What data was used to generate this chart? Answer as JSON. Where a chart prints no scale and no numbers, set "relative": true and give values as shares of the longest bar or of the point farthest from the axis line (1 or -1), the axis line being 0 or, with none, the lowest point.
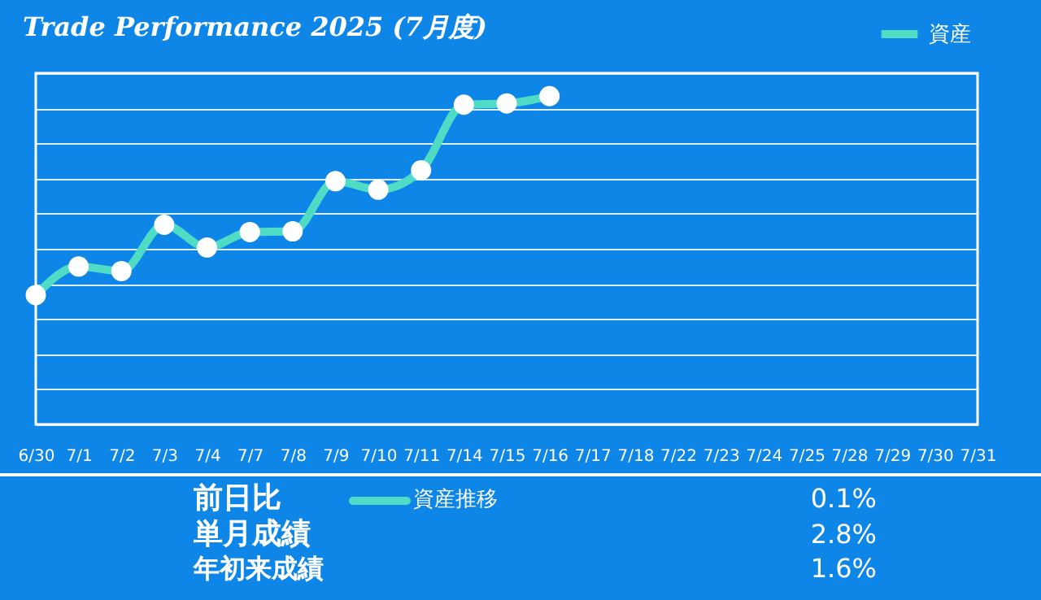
{
  "chart_data": {
    "type": "line",
    "title": "Trade Performance 2025 (7月度)",
    "categories": [
      "6/30",
      "7/1",
      "7/2",
      "7/3",
      "7/4",
      "7/7",
      "7/8",
      "7/9",
      "7/10",
      "7/11",
      "7/14",
      "7/15",
      "7/16",
      "7/17",
      "7/18",
      "7/22",
      "7/23",
      "7/24",
      "7/25",
      "7/28",
      "7/29",
      "7/30",
      "7/31"
    ],
    "series": [
      {
        "name": "資産",
        "color": "#4fdcc4",
        "values": [
          0.394,
          0.481,
          0.467,
          0.608,
          0.539,
          0.586,
          0.588,
          0.741,
          0.715,
          0.774,
          0.974,
          0.978,
          1,
          null,
          null,
          null,
          null,
          null,
          null,
          null,
          null,
          null,
          null
        ]
      }
    ],
    "relative": true,
    "grid": "y",
    "legend": "top right",
    "marker": "circle",
    "line_style": "solid",
    "annotations": [
      "前日比",
      "0.1%",
      "単月成績",
      "2.8%",
      "年初来成績",
      "1.6%",
      "資産推移"
    ]
  }
}
